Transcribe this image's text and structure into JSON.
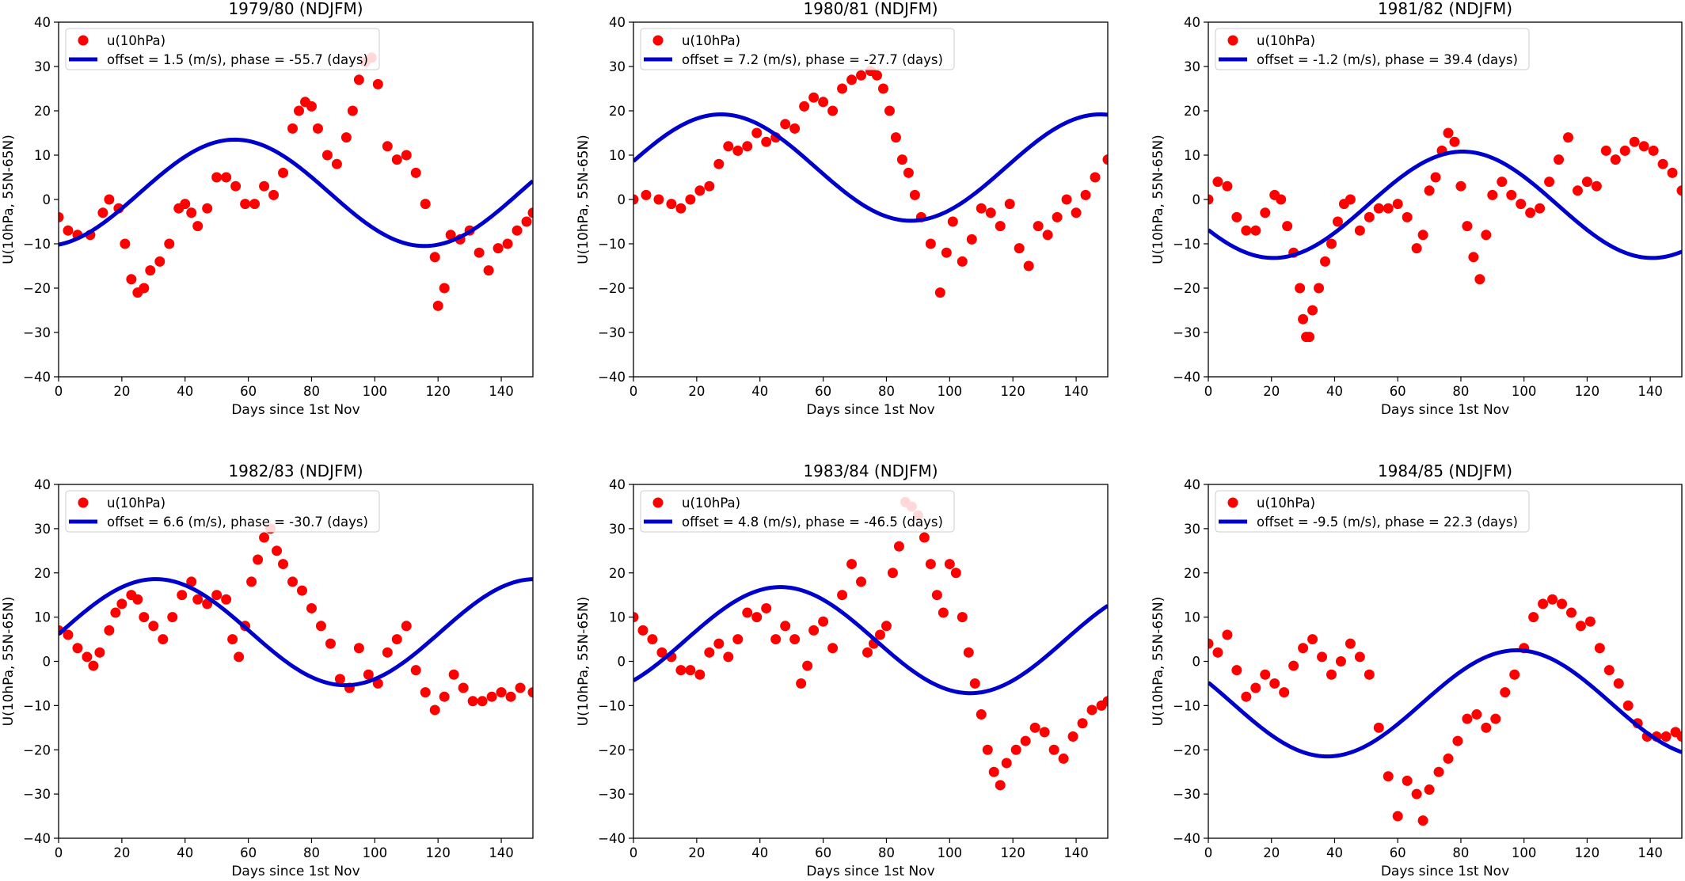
{
  "chart_data": [
    {
      "type": "scatter",
      "title": "1979/80 (NDJFM)",
      "xlabel": "Days since 1st Nov",
      "ylabel": "U(10hPa, 55N-65N)",
      "xlim": [
        0,
        150
      ],
      "ylim": [
        -40,
        40
      ],
      "xticks": [
        "0",
        "20",
        "40",
        "60",
        "80",
        "100",
        "120",
        "140"
      ],
      "yticks": [
        "−40",
        "−30",
        "−20",
        "−10",
        "0",
        "10",
        "20",
        "30",
        "40"
      ],
      "legend_placement": "upper-left",
      "grid": false,
      "series": [
        {
          "name": "u(10hPa)",
          "kind": "markers",
          "color": "#ff0000",
          "x": [
            0,
            3,
            6,
            10,
            14,
            16,
            19,
            21,
            23,
            25,
            27,
            29,
            32,
            35,
            38,
            40,
            42,
            44,
            47,
            50,
            53,
            56,
            59,
            62,
            65,
            68,
            71,
            74,
            76,
            78,
            80,
            82,
            85,
            88,
            91,
            93,
            95,
            97,
            99,
            101,
            104,
            107,
            110,
            113,
            116,
            119,
            120,
            122,
            124,
            127,
            130,
            133,
            136,
            139,
            142,
            145,
            148,
            150
          ],
          "y": [
            -4,
            -7,
            -8,
            -8,
            -3,
            0,
            -2,
            -10,
            -18,
            -21,
            -20,
            -16,
            -14,
            -10,
            -2,
            -1,
            -3,
            -6,
            -2,
            5,
            5,
            3,
            -1,
            -1,
            3,
            1,
            6,
            16,
            20,
            22,
            21,
            16,
            10,
            8,
            14,
            20,
            27,
            31,
            32,
            26,
            12,
            9,
            10,
            6,
            -1,
            -13,
            -24,
            -20,
            -8,
            -9,
            -7,
            -12,
            -16,
            -11,
            -10,
            -7,
            -5,
            -3
          ]
        },
        {
          "name": "offset = 1.5 (m/s), phase = -55.7 (days)",
          "kind": "line",
          "color": "#0000cc",
          "offset": 1.5,
          "amplitude": 12,
          "period": 120,
          "phase": -55.7
        }
      ]
    },
    {
      "type": "scatter",
      "title": "1980/81 (NDJFM)",
      "xlabel": "Days since 1st Nov",
      "ylabel": "U(10hPa, 55N-65N)",
      "xlim": [
        0,
        150
      ],
      "ylim": [
        -40,
        40
      ],
      "xticks": [
        "0",
        "20",
        "40",
        "60",
        "80",
        "100",
        "120",
        "140"
      ],
      "yticks": [
        "−40",
        "−30",
        "−20",
        "−10",
        "0",
        "10",
        "20",
        "30",
        "40"
      ],
      "legend_placement": "upper-left",
      "grid": false,
      "series": [
        {
          "name": "u(10hPa)",
          "kind": "markers",
          "color": "#ff0000",
          "x": [
            0,
            4,
            8,
            12,
            15,
            18,
            21,
            24,
            27,
            30,
            33,
            36,
            39,
            42,
            45,
            48,
            51,
            54,
            57,
            60,
            63,
            66,
            69,
            72,
            75,
            77,
            79,
            81,
            83,
            85,
            87,
            89,
            91,
            94,
            97,
            99,
            101,
            104,
            107,
            110,
            113,
            116,
            119,
            122,
            125,
            128,
            131,
            134,
            137,
            140,
            143,
            146,
            150
          ],
          "y": [
            0,
            1,
            0,
            -1,
            -2,
            0,
            2,
            3,
            8,
            12,
            11,
            12,
            15,
            13,
            14,
            17,
            16,
            21,
            23,
            22,
            20,
            25,
            27,
            28,
            29,
            28,
            25,
            20,
            14,
            9,
            6,
            1,
            -4,
            -10,
            -21,
            -12,
            -5,
            -14,
            -9,
            -2,
            -3,
            -6,
            -1,
            -11,
            -15,
            -6,
            -8,
            -4,
            0,
            -3,
            1,
            5,
            9
          ]
        },
        {
          "name": "offset = 7.2 (m/s), phase = -27.7 (days)",
          "kind": "line",
          "color": "#0000cc",
          "offset": 7.2,
          "amplitude": 12,
          "period": 120,
          "phase": -27.7
        }
      ]
    },
    {
      "type": "scatter",
      "title": "1981/82 (NDJFM)",
      "xlabel": "Days since 1st Nov",
      "ylabel": "U(10hPa, 55N-65N)",
      "xlim": [
        0,
        150
      ],
      "ylim": [
        -40,
        40
      ],
      "xticks": [
        "0",
        "20",
        "40",
        "60",
        "80",
        "100",
        "120",
        "140"
      ],
      "yticks": [
        "−40",
        "−30",
        "−20",
        "−10",
        "0",
        "10",
        "20",
        "30",
        "40"
      ],
      "legend_placement": "upper-left",
      "grid": false,
      "series": [
        {
          "name": "u(10hPa)",
          "kind": "markers",
          "color": "#ff0000",
          "x": [
            0,
            3,
            6,
            9,
            12,
            15,
            18,
            21,
            23,
            25,
            27,
            29,
            30,
            31,
            32,
            33,
            35,
            37,
            39,
            41,
            43,
            45,
            48,
            51,
            54,
            57,
            60,
            63,
            66,
            68,
            70,
            72,
            74,
            76,
            78,
            80,
            82,
            84,
            86,
            88,
            90,
            93,
            96,
            99,
            102,
            105,
            108,
            111,
            114,
            117,
            120,
            123,
            126,
            129,
            132,
            135,
            138,
            141,
            144,
            147,
            150
          ],
          "y": [
            0,
            4,
            3,
            -4,
            -7,
            -7,
            -3,
            1,
            0,
            -6,
            -12,
            -20,
            -27,
            -31,
            -31,
            -25,
            -20,
            -14,
            -10,
            -5,
            -1,
            0,
            -7,
            -4,
            -2,
            -2,
            -1,
            -4,
            -11,
            -8,
            2,
            5,
            11,
            15,
            13,
            3,
            -6,
            -13,
            -18,
            -8,
            1,
            4,
            1,
            -1,
            -3,
            -2,
            4,
            9,
            14,
            2,
            4,
            3,
            11,
            9,
            11,
            13,
            12,
            11,
            8,
            6,
            2
          ]
        },
        {
          "name": "offset = -1.2 (m/s), phase = 39.4 (days)",
          "kind": "line",
          "color": "#0000cc",
          "offset": -1.2,
          "amplitude": 12,
          "period": 120,
          "phase": 39.4
        }
      ]
    },
    {
      "type": "scatter",
      "title": "1982/83 (NDJFM)",
      "xlabel": "Days since 1st Nov",
      "ylabel": "U(10hPa, 55N-65N)",
      "xlim": [
        0,
        150
      ],
      "ylim": [
        -40,
        40
      ],
      "xticks": [
        "0",
        "20",
        "40",
        "60",
        "80",
        "100",
        "120",
        "140"
      ],
      "yticks": [
        "−40",
        "−30",
        "−20",
        "−10",
        "0",
        "10",
        "20",
        "30",
        "40"
      ],
      "legend_placement": "upper-left",
      "grid": false,
      "series": [
        {
          "name": "u(10hPa)",
          "kind": "markers",
          "color": "#ff0000",
          "x": [
            0,
            3,
            6,
            9,
            11,
            13,
            16,
            18,
            20,
            23,
            25,
            27,
            30,
            33,
            36,
            39,
            42,
            44,
            47,
            50,
            53,
            55,
            57,
            59,
            61,
            63,
            65,
            67,
            69,
            71,
            74,
            77,
            80,
            83,
            86,
            89,
            92,
            95,
            98,
            101,
            104,
            107,
            110,
            113,
            116,
            119,
            122,
            125,
            128,
            131,
            134,
            137,
            140,
            143,
            146,
            150
          ],
          "y": [
            7,
            6,
            3,
            1,
            -1,
            2,
            7,
            11,
            13,
            15,
            14,
            10,
            8,
            5,
            10,
            15,
            18,
            14,
            13,
            15,
            14,
            5,
            1,
            8,
            18,
            23,
            28,
            30,
            25,
            22,
            18,
            16,
            12,
            8,
            4,
            -4,
            -6,
            3,
            -3,
            -5,
            2,
            5,
            8,
            -2,
            -7,
            -11,
            -8,
            -3,
            -6,
            -9,
            -9,
            -8,
            -7,
            -8,
            -6,
            -7
          ]
        },
        {
          "name": "offset = 6.6 (m/s), phase = -30.7 (days)",
          "kind": "line",
          "color": "#0000cc",
          "offset": 6.6,
          "amplitude": 12,
          "period": 120,
          "phase": -30.7
        }
      ]
    },
    {
      "type": "scatter",
      "title": "1983/84 (NDJFM)",
      "xlabel": "Days since 1st Nov",
      "ylabel": "U(10hPa, 55N-65N)",
      "xlim": [
        0,
        150
      ],
      "ylim": [
        -40,
        40
      ],
      "xticks": [
        "0",
        "20",
        "40",
        "60",
        "80",
        "100",
        "120",
        "140"
      ],
      "yticks": [
        "−40",
        "−30",
        "−20",
        "−10",
        "0",
        "10",
        "20",
        "30",
        "40"
      ],
      "legend_placement": "upper-left",
      "grid": false,
      "series": [
        {
          "name": "u(10hPa)",
          "kind": "markers",
          "color": "#ff0000",
          "x": [
            0,
            3,
            6,
            9,
            12,
            15,
            18,
            21,
            24,
            27,
            30,
            33,
            36,
            39,
            42,
            45,
            48,
            51,
            53,
            55,
            57,
            60,
            63,
            66,
            69,
            72,
            74,
            76,
            78,
            80,
            82,
            84,
            86,
            88,
            90,
            92,
            94,
            96,
            98,
            100,
            102,
            104,
            106,
            108,
            110,
            112,
            114,
            116,
            118,
            121,
            124,
            127,
            130,
            133,
            136,
            139,
            142,
            145,
            148,
            150
          ],
          "y": [
            10,
            7,
            5,
            2,
            1,
            -2,
            -2,
            -3,
            2,
            4,
            1,
            5,
            11,
            10,
            12,
            5,
            8,
            5,
            -5,
            -1,
            7,
            9,
            3,
            15,
            22,
            18,
            2,
            4,
            6,
            8,
            20,
            26,
            36,
            35,
            33,
            28,
            22,
            15,
            11,
            22,
            20,
            10,
            2,
            -5,
            -12,
            -20,
            -25,
            -28,
            -23,
            -20,
            -18,
            -15,
            -16,
            -20,
            -22,
            -17,
            -14,
            -11,
            -10,
            -9
          ]
        },
        {
          "name": "offset = 4.8 (m/s), phase = -46.5 (days)",
          "kind": "line",
          "color": "#0000cc",
          "offset": 4.8,
          "amplitude": 12,
          "period": 120,
          "phase": -46.5
        }
      ]
    },
    {
      "type": "scatter",
      "title": "1984/85 (NDJFM)",
      "xlabel": "Days since 1st Nov",
      "ylabel": "U(10hPa, 55N-65N)",
      "xlim": [
        0,
        150
      ],
      "ylim": [
        -40,
        40
      ],
      "xticks": [
        "0",
        "20",
        "40",
        "60",
        "80",
        "100",
        "120",
        "140"
      ],
      "yticks": [
        "−40",
        "−30",
        "−20",
        "−10",
        "0",
        "10",
        "20",
        "30",
        "40"
      ],
      "legend_placement": "upper-left",
      "grid": false,
      "series": [
        {
          "name": "u(10hPa)",
          "kind": "markers",
          "color": "#ff0000",
          "x": [
            0,
            3,
            6,
            9,
            12,
            15,
            18,
            21,
            24,
            27,
            30,
            33,
            36,
            39,
            42,
            45,
            48,
            51,
            54,
            57,
            60,
            63,
            66,
            68,
            70,
            73,
            76,
            79,
            82,
            85,
            88,
            91,
            94,
            97,
            100,
            103,
            106,
            109,
            112,
            115,
            118,
            121,
            124,
            127,
            130,
            133,
            136,
            139,
            142,
            145,
            148,
            150
          ],
          "y": [
            4,
            2,
            6,
            -2,
            -8,
            -6,
            -3,
            -5,
            -7,
            -1,
            3,
            5,
            1,
            -3,
            0,
            4,
            1,
            -3,
            -15,
            -26,
            -35,
            -27,
            -30,
            -36,
            -29,
            -25,
            -22,
            -18,
            -13,
            -12,
            -15,
            -13,
            -7,
            -3,
            3,
            10,
            13,
            14,
            13,
            11,
            8,
            9,
            3,
            -2,
            -5,
            -10,
            -14,
            -17,
            -17,
            -17,
            -16,
            -17
          ]
        },
        {
          "name": "offset = -9.5 (m/s), phase = 22.3 (days)",
          "kind": "line",
          "color": "#0000cc",
          "offset": -9.5,
          "amplitude": 12,
          "period": 120,
          "phase": 22.3
        }
      ]
    }
  ]
}
